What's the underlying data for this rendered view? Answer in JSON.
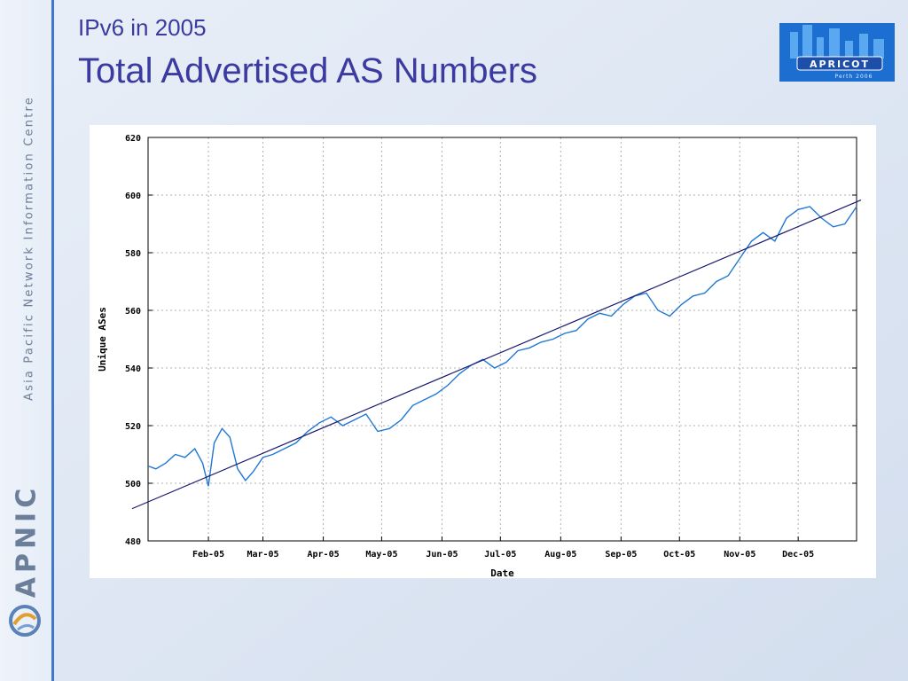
{
  "slide": {
    "subtitle": "IPv6 in 2005",
    "title": "Total Advertised AS Numbers"
  },
  "sidebar": {
    "org_name": "Asia Pacific Network Information Centre",
    "brand": "APNIC"
  },
  "badge": {
    "name": "APRICOT",
    "caption": "Perth 2006"
  },
  "colors": {
    "background": "#dfe8f5",
    "title": "#3a3aa0",
    "sidebar_line": "#3f78c8",
    "series": "#1f78d6",
    "trend": "#1a1a6e",
    "grid": "#b0b0b0"
  },
  "chart_data": {
    "type": "line",
    "title": "",
    "xlabel": "Date",
    "ylabel": "Unique ASes",
    "ylim": [
      480,
      620
    ],
    "yticks": [
      480,
      500,
      520,
      540,
      560,
      580,
      600,
      620
    ],
    "xlim": [
      "2005-01-01",
      "2005-12-31"
    ],
    "xticks": [
      {
        "label": "Feb-05",
        "date": "2005-02-01"
      },
      {
        "label": "Mar-05",
        "date": "2005-03-01"
      },
      {
        "label": "Apr-05",
        "date": "2005-04-01"
      },
      {
        "label": "May-05",
        "date": "2005-05-01"
      },
      {
        "label": "Jun-05",
        "date": "2005-06-01"
      },
      {
        "label": "Jul-05",
        "date": "2005-07-01"
      },
      {
        "label": "Aug-05",
        "date": "2005-08-01"
      },
      {
        "label": "Sep-05",
        "date": "2005-09-01"
      },
      {
        "label": "Oct-05",
        "date": "2005-10-01"
      },
      {
        "label": "Nov-05",
        "date": "2005-11-01"
      },
      {
        "label": "Dec-05",
        "date": "2005-12-01"
      }
    ],
    "grid": true,
    "legend": "none",
    "series": [
      {
        "x": [
          "2005-01-01",
          "2005-01-05",
          "2005-01-10",
          "2005-01-15",
          "2005-01-20",
          "2005-01-25",
          "2005-01-29",
          "2005-02-01",
          "2005-02-04",
          "2005-02-08",
          "2005-02-12",
          "2005-02-16",
          "2005-02-20",
          "2005-02-24",
          "2005-03-01",
          "2005-03-06",
          "2005-03-12",
          "2005-03-18",
          "2005-03-24",
          "2005-03-30",
          "2005-04-05",
          "2005-04-11",
          "2005-04-17",
          "2005-04-23",
          "2005-04-29",
          "2005-05-05",
          "2005-05-11",
          "2005-05-17",
          "2005-05-23",
          "2005-05-29",
          "2005-06-04",
          "2005-06-10",
          "2005-06-16",
          "2005-06-22",
          "2005-06-28",
          "2005-07-04",
          "2005-07-10",
          "2005-07-16",
          "2005-07-22",
          "2005-07-28",
          "2005-08-03",
          "2005-08-09",
          "2005-08-15",
          "2005-08-21",
          "2005-08-27",
          "2005-09-02",
          "2005-09-08",
          "2005-09-14",
          "2005-09-20",
          "2005-09-26",
          "2005-10-02",
          "2005-10-08",
          "2005-10-14",
          "2005-10-20",
          "2005-10-26",
          "2005-11-01",
          "2005-11-07",
          "2005-11-13",
          "2005-11-19",
          "2005-11-25",
          "2005-12-01",
          "2005-12-07",
          "2005-12-13",
          "2005-12-19",
          "2005-12-25",
          "2005-12-31"
        ],
        "y": [
          506,
          505,
          507,
          510,
          509,
          512,
          507,
          499,
          514,
          519,
          516,
          505,
          501,
          504,
          509,
          510,
          512,
          514,
          518,
          521,
          523,
          520,
          522,
          524,
          518,
          519,
          522,
          527,
          529,
          531,
          534,
          538,
          541,
          543,
          540,
          542,
          546,
          547,
          549,
          550,
          552,
          553,
          557,
          559,
          558,
          562,
          565,
          566,
          560,
          558,
          562,
          565,
          566,
          570,
          572,
          578,
          584,
          587,
          584,
          592,
          595,
          596,
          592,
          589,
          590,
          596
        ]
      }
    ],
    "trendline": {
      "x": [
        "2005-01-01",
        "2005-12-31"
      ],
      "y": [
        491.5,
        598.3
      ]
    }
  }
}
